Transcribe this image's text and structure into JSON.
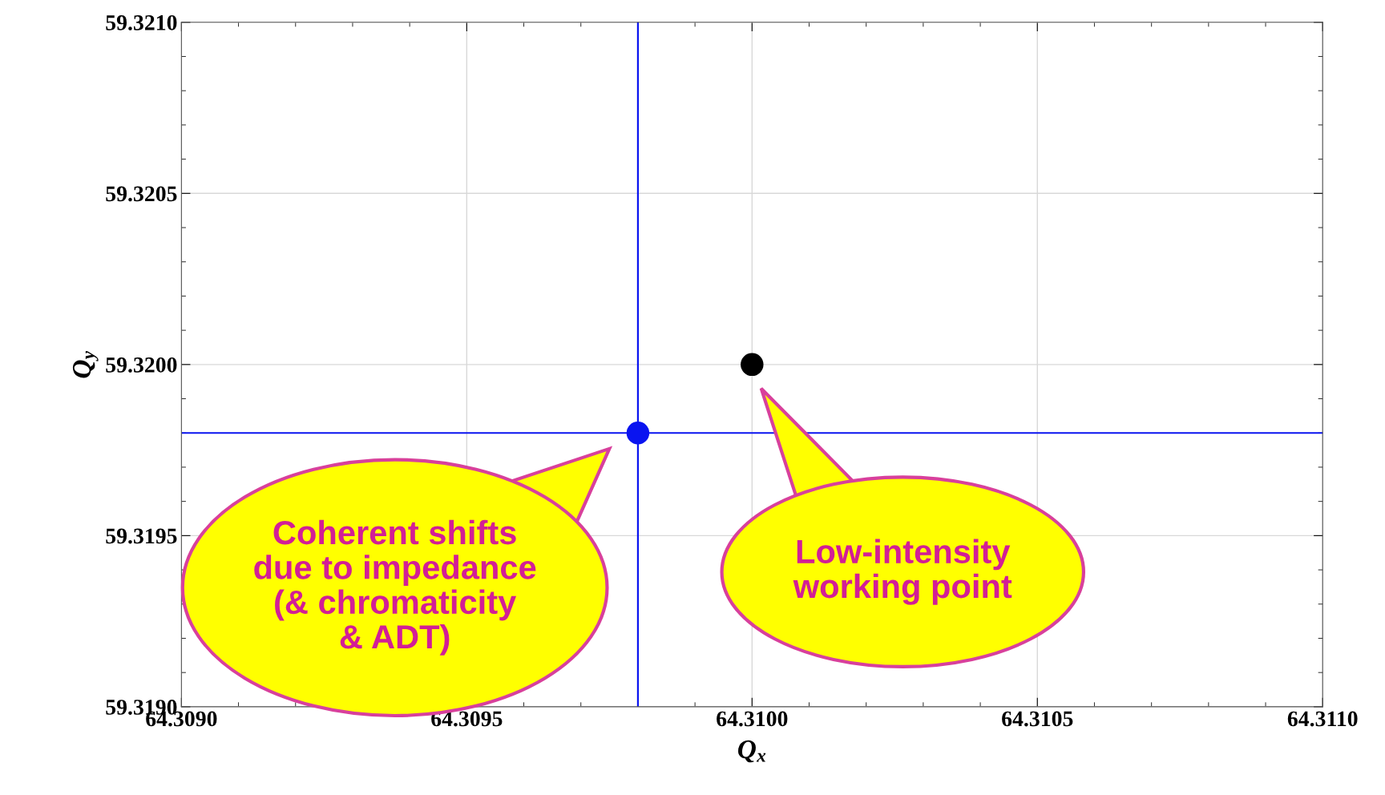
{
  "chart_data": {
    "type": "scatter",
    "xlabel": "Q$_{x}$",
    "ylabel": "Q$_{y}$",
    "series": [
      {
        "x": [
          64.3098,
          64.31
        ],
        "values": [
          59.3198,
          59.32
        ],
        "colors": [
          "#0a14f0",
          "#000000"
        ]
      }
    ],
    "marker": "circle",
    "xlim": [
      64.309,
      64.311
    ],
    "xticks": [
      {
        "value": 64.309,
        "label": "64.3090"
      },
      {
        "value": 64.3095,
        "label": "64.3095"
      },
      {
        "value": 64.31,
        "label": "64.3100"
      },
      {
        "value": 64.3105,
        "label": "64.3105"
      },
      {
        "value": 64.311,
        "label": "64.3110"
      }
    ],
    "ylim": [
      59.319,
      59.321
    ],
    "yticks": [
      {
        "value": 59.319,
        "label": "59.3190"
      },
      {
        "value": 59.3195,
        "label": "59.3195"
      },
      {
        "value": 59.32,
        "label": "59.3200"
      },
      {
        "value": 59.3205,
        "label": "59.3205"
      },
      {
        "value": 59.321,
        "label": "59.3210"
      }
    ],
    "grid": true,
    "ref_lines": [
      {
        "axis": "x",
        "value": 64.3098,
        "color": "#0a14f0"
      },
      {
        "axis": "y",
        "value": 59.3198,
        "color": "#0a14f0"
      }
    ],
    "annotations": [
      "Coherent shifts\ndue to impedance\n(& chromaticity\n& ADT)",
      "Low-intensity\nworking point"
    ]
  }
}
